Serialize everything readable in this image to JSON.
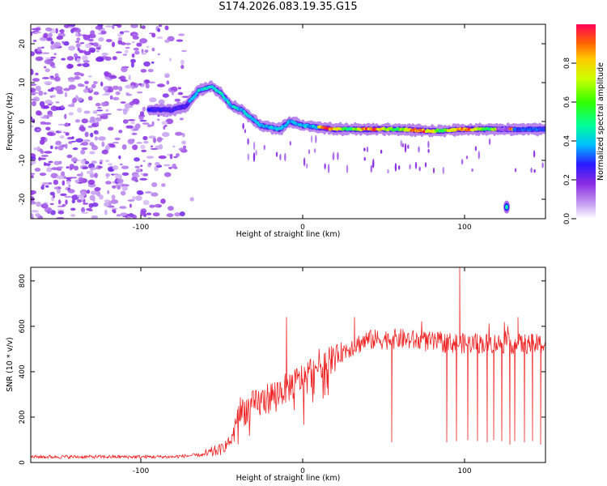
{
  "title": "S174.2026.083.19.35.G15",
  "chart_data": [
    {
      "type": "heatmap",
      "xlabel": "Height of straight line (km)",
      "ylabel": "Frequency (Hz)",
      "xlim": [
        -168,
        150
      ],
      "ylim": [
        -25,
        25
      ],
      "xticks": [
        -100,
        0,
        100
      ],
      "yticks": [
        -20,
        -10,
        0,
        10,
        20
      ],
      "colorbar": {
        "label": "Normalized spectral amplitude",
        "range": [
          0,
          1
        ],
        "ticks": [
          0.0,
          0.2,
          0.4,
          0.6,
          0.8
        ]
      },
      "ridge": [
        {
          "x": -80,
          "y": 3
        },
        {
          "x": -72,
          "y": 4
        },
        {
          "x": -64,
          "y": 8
        },
        {
          "x": -56,
          "y": 9
        },
        {
          "x": -50,
          "y": 7
        },
        {
          "x": -44,
          "y": 4
        },
        {
          "x": -38,
          "y": 3
        },
        {
          "x": -32,
          "y": 1
        },
        {
          "x": -26,
          "y": -1
        },
        {
          "x": -20,
          "y": -1.5
        },
        {
          "x": -14,
          "y": -2
        },
        {
          "x": -8,
          "y": 0
        },
        {
          "x": 0,
          "y": -1
        },
        {
          "x": 10,
          "y": -1.5
        },
        {
          "x": 20,
          "y": -2
        },
        {
          "x": 40,
          "y": -2
        },
        {
          "x": 60,
          "y": -2
        },
        {
          "x": 80,
          "y": -2.5
        },
        {
          "x": 100,
          "y": -2
        },
        {
          "x": 120,
          "y": -2
        },
        {
          "x": 130,
          "y": -2
        },
        {
          "x": 140,
          "y": -2
        },
        {
          "x": 150,
          "y": -2
        }
      ],
      "secondary_blob": {
        "x": 126,
        "y": -22,
        "level": 0.45
      }
    },
    {
      "type": "line",
      "xlabel": "Height of straight line (km)",
      "ylabel": "SNR (10 * v/v)",
      "xlim": [
        -168,
        150
      ],
      "ylim": [
        0,
        860
      ],
      "xticks": [
        -100,
        0,
        100
      ],
      "yticks": [
        0,
        200,
        400,
        600,
        800
      ],
      "series": [
        {
          "color": "#ee2222",
          "envelope": [
            {
              "x": -168,
              "y": 25
            },
            {
              "x": -80,
              "y": 25
            },
            {
              "x": -60,
              "y": 35
            },
            {
              "x": -50,
              "y": 60
            },
            {
              "x": -44,
              "y": 100
            },
            {
              "x": -40,
              "y": 220
            },
            {
              "x": -30,
              "y": 250
            },
            {
              "x": -20,
              "y": 290
            },
            {
              "x": -10,
              "y": 330
            },
            {
              "x": 0,
              "y": 370
            },
            {
              "x": 10,
              "y": 430
            },
            {
              "x": 20,
              "y": 470
            },
            {
              "x": 30,
              "y": 510
            },
            {
              "x": 40,
              "y": 540
            },
            {
              "x": 60,
              "y": 545
            },
            {
              "x": 80,
              "y": 530
            },
            {
              "x": 100,
              "y": 525
            },
            {
              "x": 120,
              "y": 525
            },
            {
              "x": 150,
              "y": 520
            }
          ],
          "spikes": [
            {
              "x": -10,
              "y": 640
            },
            {
              "x": 32,
              "y": 640
            },
            {
              "x": 97,
              "y": 860
            },
            {
              "x": 133,
              "y": 640
            }
          ],
          "dropouts": [
            {
              "x": 55,
              "y": 90
            },
            {
              "x": 89,
              "y": 90
            },
            {
              "x": 95,
              "y": 95
            },
            {
              "x": 102,
              "y": 100
            },
            {
              "x": 108,
              "y": 95
            },
            {
              "x": 114,
              "y": 90
            },
            {
              "x": 118,
              "y": 100
            },
            {
              "x": 123,
              "y": 95
            },
            {
              "x": 128,
              "y": 80
            },
            {
              "x": 131,
              "y": 95
            },
            {
              "x": 137,
              "y": 90
            },
            {
              "x": 142,
              "y": 95
            },
            {
              "x": 147,
              "y": 80
            }
          ]
        }
      ]
    }
  ]
}
